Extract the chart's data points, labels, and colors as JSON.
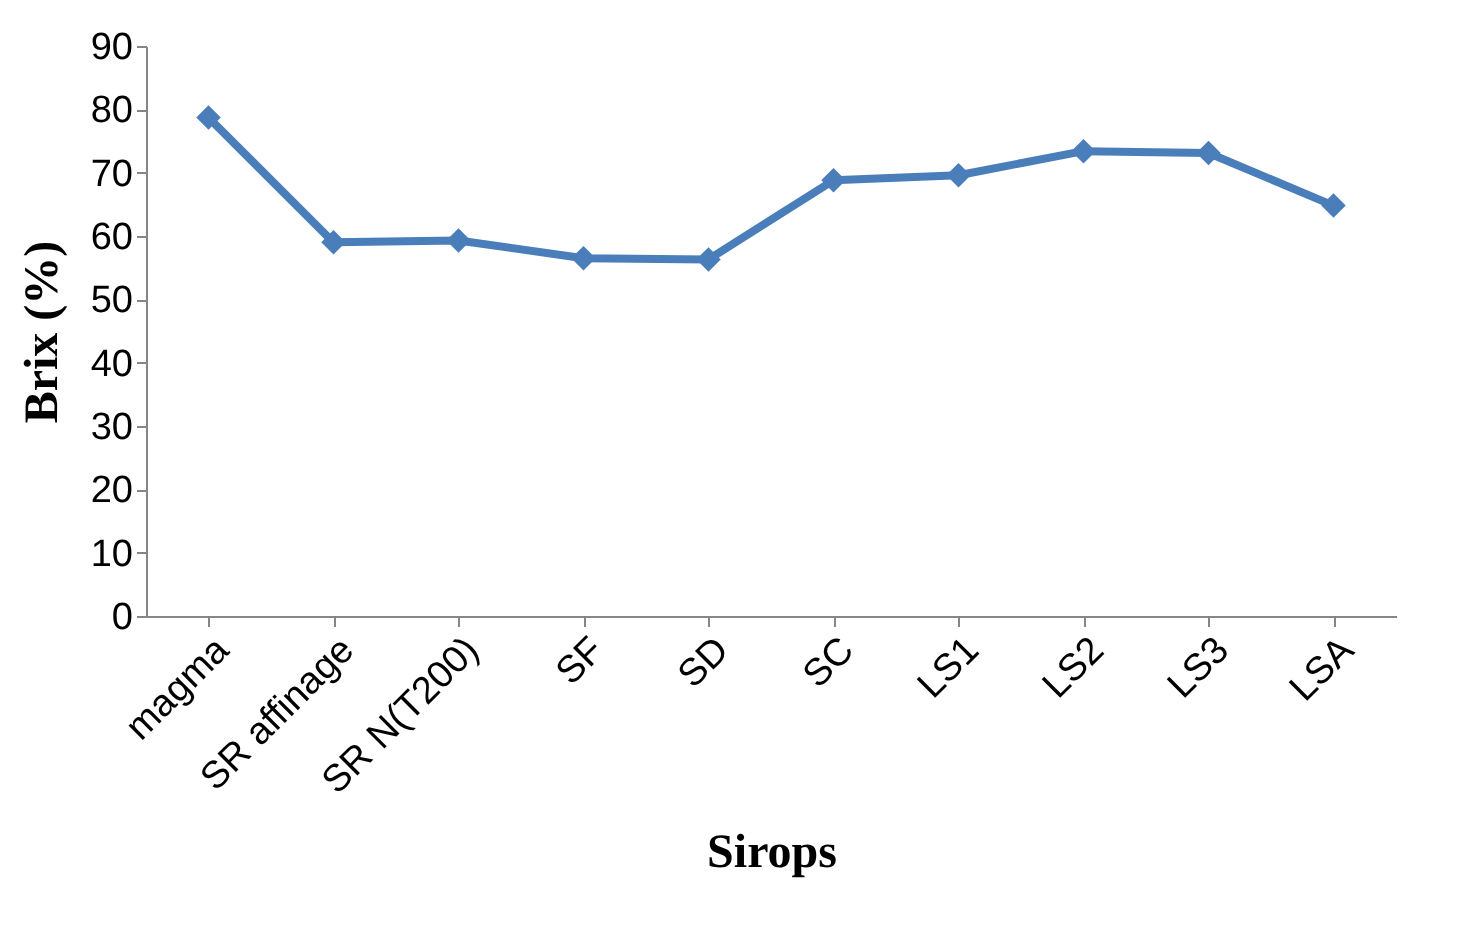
{
  "chart_data": {
    "type": "line",
    "xlabel": "Sirops",
    "ylabel": "Brix (%)",
    "categories": [
      "magma",
      "SR affinage",
      "SR N(T200)",
      "SF",
      "SD",
      "SC",
      "LS1",
      "LS2",
      "LS3",
      "LSA"
    ],
    "series": [
      {
        "color": "#4a7ebb",
        "values": [
          78.7,
          59.0,
          59.3,
          56.5,
          56.3,
          68.8,
          69.6,
          73.4,
          73.1,
          64.8
        ]
      }
    ],
    "ylim": [
      0,
      90
    ],
    "yticks": [
      0,
      10,
      20,
      30,
      40,
      50,
      60,
      70,
      80,
      90
    ],
    "grid": false,
    "legend": false,
    "marker": "diamond",
    "line_style": "solid"
  }
}
